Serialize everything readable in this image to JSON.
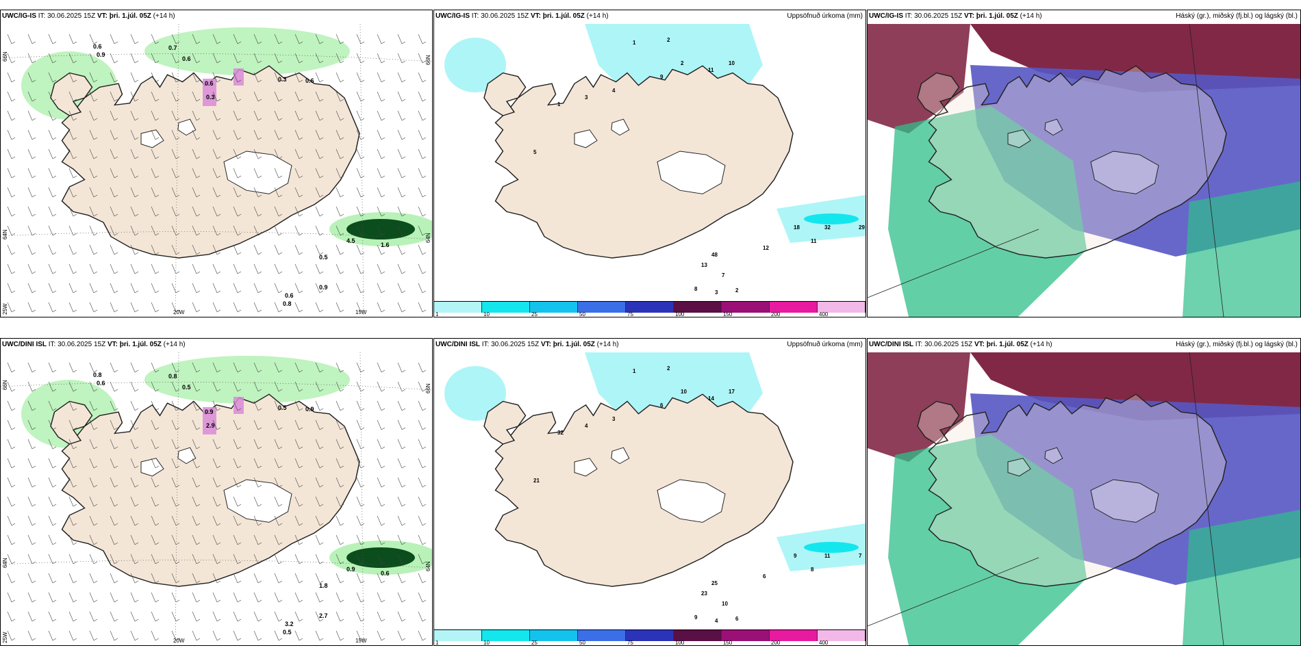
{
  "colors": {
    "land": "#f4e6d7",
    "ice": "#ffffff",
    "precip_light": "#b8f2b8",
    "precip_dark": "#0b4d1c",
    "snow": "#d98ad8",
    "acc_low": "#aef5f7",
    "cloud_high": "#7a1c3c",
    "cloud_mid": "#5656c4",
    "cloud_low": "#2fbf8a"
  },
  "panels": [
    {
      "model": "UWC/IG-IS",
      "it_label": "IT:",
      "it_value": "30.06.2025 15Z",
      "vt_label": "VT:",
      "vt_value": "þri. 1.júl. 05Z",
      "lead": "(+14 h)",
      "right_title": "",
      "lat_labels": [
        "66N",
        "64N",
        "25W"
      ],
      "lon_labels": [
        "20W",
        "15W"
      ],
      "right_lat_labels": [
        "66N",
        "64N"
      ],
      "values": [
        "0.6",
        "0.9",
        "0.7",
        "0.6",
        "0.6",
        "0.3",
        "0.6",
        "0.3",
        "0.5",
        "4.5",
        "1.6",
        "0.9",
        "0.6",
        "0.8"
      ]
    },
    {
      "model": "UWC/IG-IS",
      "it_label": "IT:",
      "it_value": "30.06.2025 15Z",
      "vt_label": "VT:",
      "vt_value": "þri. 1.júl. 05Z",
      "lead": "(+14 h)",
      "right_title": "Uppsöfnuð úrkoma (mm)",
      "values": [
        "1",
        "2",
        "2",
        "10",
        "11",
        "9",
        "4",
        "3",
        "1",
        "5",
        "32",
        "29",
        "18",
        "11",
        "12",
        "48",
        "13",
        "7",
        "8",
        "3",
        "2"
      ],
      "colorbar": {
        "ticks": [
          "1",
          "10",
          "25",
          "50",
          "75",
          "100",
          "150",
          "200",
          "400"
        ],
        "colors": [
          "#b3f5f7",
          "#14e6ee",
          "#13c3ee",
          "#3b6fe8",
          "#2b34b8",
          "#5a0f45",
          "#9a1077",
          "#e81aa0",
          "#f2b8e8"
        ]
      }
    },
    {
      "model": "UWC/IG-IS",
      "it_label": "IT:",
      "it_value": "30.06.2025 15Z",
      "vt_label": "VT:",
      "vt_value": "þri. 1.júl. 05Z",
      "lead": "(+14 h)",
      "right_title": "Háský (gr.), miðský (fj.bl.) og lágský (bl.)"
    },
    {
      "model": "UWC/DINI ISL",
      "it_label": "IT:",
      "it_value": "30.06.2025 15Z",
      "vt_label": "VT:",
      "vt_value": "þri. 1.júl. 05Z",
      "lead": "(+14 h)",
      "right_title": "",
      "lat_labels": [
        "66N",
        "64N",
        "25W"
      ],
      "lon_labels": [
        "20W",
        "15W"
      ],
      "right_lat_labels": [
        "66N",
        "64N"
      ],
      "values": [
        "0.8",
        "0.6",
        "0.8",
        "0.5",
        "0.9",
        "0.5",
        "0.9",
        "2.9",
        "1.8",
        "0.9",
        "0.6",
        "2.7",
        "3.2",
        "0.5"
      ]
    },
    {
      "model": "UWC/DINI ISL",
      "it_label": "IT:",
      "it_value": "30.06.2025 15Z",
      "vt_label": "VT:",
      "vt_value": "þri. 1.júl. 05Z",
      "lead": "(+14 h)",
      "right_title": "Uppsöfnuð úrkoma (mm)",
      "values": [
        "1",
        "2",
        "10",
        "17",
        "14",
        "6",
        "3",
        "4",
        "32",
        "21",
        "11",
        "7",
        "9",
        "8",
        "6",
        "25",
        "23",
        "10",
        "9",
        "4",
        "6"
      ],
      "colorbar": {
        "ticks": [
          "1",
          "10",
          "25",
          "50",
          "75",
          "100",
          "150",
          "200",
          "400"
        ],
        "colors": [
          "#b3f5f7",
          "#14e6ee",
          "#13c3ee",
          "#3b6fe8",
          "#2b34b8",
          "#5a0f45",
          "#9a1077",
          "#e81aa0",
          "#f2b8e8"
        ]
      }
    },
    {
      "model": "UWC/DINI ISL",
      "it_label": "IT:",
      "it_value": "30.06.2025 15Z",
      "vt_label": "VT:",
      "vt_value": "þri. 1.júl. 05Z",
      "lead": "(+14 h)",
      "right_title": "Háský (gr.), miðský (fj.bl.) og lágský (bl.)"
    }
  ]
}
